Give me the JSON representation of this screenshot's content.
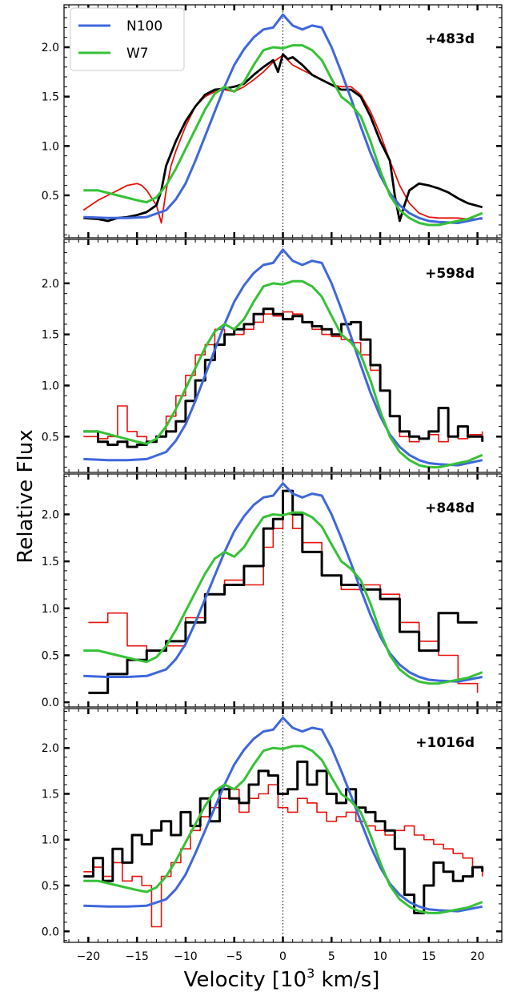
{
  "chart_data": {
    "type": "line",
    "xlabel": "Velocity [10",
    "xlabel_sup": "3",
    "xlabel_tail": " km/s]",
    "ylabel": "Relative Flux",
    "xlim": [
      -22.5,
      22.5
    ],
    "x_ticks": [
      -20,
      -15,
      -10,
      -5,
      0,
      5,
      10,
      15,
      20
    ],
    "x_tick_labels": [
      "−20",
      "−15",
      "−10",
      "−5",
      "0",
      "5",
      "10",
      "15",
      "20"
    ],
    "legend": {
      "location": "upper-left",
      "entries": [
        {
          "name": "N100",
          "color": "#3f67dc"
        },
        {
          "name": "W7",
          "color": "#36c236"
        }
      ]
    },
    "observed_colors": {
      "spectrum_a": "#000000",
      "spectrum_b": "#e8120c"
    },
    "model_series": {
      "N100": {
        "color": "#3f67dc",
        "x": [
          -20.5,
          -18,
          -16,
          -14,
          -12,
          -11,
          -10,
          -9,
          -8,
          -7,
          -6,
          -5,
          -4,
          -3,
          -2,
          -1,
          0,
          1,
          2,
          3,
          4,
          5,
          6,
          7,
          8,
          9,
          10,
          11,
          12,
          13,
          14,
          15,
          16,
          18,
          20.5
        ],
        "y": [
          0.28,
          0.27,
          0.27,
          0.28,
          0.35,
          0.46,
          0.62,
          0.85,
          1.1,
          1.35,
          1.6,
          1.82,
          1.98,
          2.1,
          2.18,
          2.2,
          2.33,
          2.22,
          2.18,
          2.22,
          2.2,
          2.0,
          1.75,
          1.48,
          1.2,
          0.93,
          0.7,
          0.52,
          0.4,
          0.32,
          0.27,
          0.24,
          0.23,
          0.22,
          0.27
        ]
      },
      "W7": {
        "color": "#36c236",
        "x": [
          -20.5,
          -19,
          -17,
          -15,
          -14,
          -13,
          -12,
          -11,
          -10,
          -9,
          -8,
          -7,
          -6,
          -5,
          -4,
          -3,
          -2,
          -1,
          0,
          1,
          2,
          3,
          4,
          5,
          6,
          7,
          8,
          9,
          10,
          11,
          12,
          13,
          14,
          15,
          16,
          17,
          18,
          19,
          20.5
        ],
        "y": [
          0.55,
          0.55,
          0.5,
          0.45,
          0.43,
          0.48,
          0.6,
          0.77,
          0.97,
          1.17,
          1.37,
          1.53,
          1.6,
          1.55,
          1.65,
          1.82,
          1.97,
          2.0,
          1.99,
          2.02,
          2.02,
          1.97,
          1.87,
          1.68,
          1.5,
          1.42,
          1.3,
          1.05,
          0.75,
          0.5,
          0.35,
          0.27,
          0.22,
          0.2,
          0.2,
          0.22,
          0.24,
          0.26,
          0.32
        ]
      }
    },
    "panels": [
      {
        "epoch": "+483d",
        "ylim": [
          0.07,
          2.43
        ],
        "y_ticks": [
          0.5,
          1.0,
          1.5,
          2.0
        ],
        "y_tick_labels": [
          "0.5",
          "1.0",
          "1.5",
          "2.0"
        ],
        "step": false,
        "spectrum_a": {
          "x": [
            -20.5,
            -19,
            -18,
            -17,
            -16,
            -15,
            -14,
            -13,
            -12.5,
            -12,
            -11,
            -10,
            -9,
            -8,
            -7,
            -6,
            -5,
            -4,
            -3,
            -2,
            -1,
            -0.5,
            0,
            0.5,
            1,
            2,
            3,
            4,
            5,
            6,
            7,
            8,
            9,
            10,
            11,
            11.5,
            12,
            12.5,
            13,
            14,
            15,
            16,
            17,
            18,
            19,
            20.5
          ],
          "y": [
            0.27,
            0.26,
            0.24,
            0.27,
            0.28,
            0.3,
            0.33,
            0.4,
            0.55,
            0.8,
            1.05,
            1.25,
            1.4,
            1.52,
            1.57,
            1.58,
            1.6,
            1.63,
            1.72,
            1.8,
            1.87,
            1.75,
            1.93,
            1.88,
            1.9,
            1.82,
            1.72,
            1.67,
            1.62,
            1.57,
            1.57,
            1.5,
            1.3,
            1.05,
            0.85,
            0.5,
            0.24,
            0.4,
            0.55,
            0.62,
            0.6,
            0.57,
            0.53,
            0.47,
            0.42,
            0.38
          ]
        },
        "spectrum_b": {
          "x": [
            -20.5,
            -19,
            -18,
            -17,
            -16,
            -15,
            -14.5,
            -14,
            -13,
            -12.5,
            -12,
            -11.5,
            -11,
            -10,
            -9,
            -8,
            -7,
            -6,
            -5,
            -4,
            -3,
            -2,
            -1,
            0,
            1,
            2,
            3,
            4,
            5,
            6,
            7,
            8,
            9,
            10,
            11,
            12,
            13,
            14,
            15,
            16,
            17,
            18,
            19,
            20.5
          ],
          "y": [
            0.35,
            0.45,
            0.5,
            0.55,
            0.6,
            0.62,
            0.6,
            0.55,
            0.4,
            0.22,
            0.55,
            0.8,
            0.95,
            1.2,
            1.4,
            1.5,
            1.55,
            1.57,
            1.55,
            1.6,
            1.67,
            1.75,
            1.85,
            1.92,
            1.82,
            1.77,
            1.72,
            1.67,
            1.62,
            1.6,
            1.6,
            1.52,
            1.35,
            1.12,
            0.85,
            0.6,
            0.42,
            0.32,
            0.28,
            0.27,
            0.27,
            0.27,
            0.26,
            0.26
          ]
        }
      },
      {
        "epoch": "+598d",
        "ylim": [
          0.15,
          2.43
        ],
        "y_ticks": [
          0.5,
          1.0,
          1.5,
          2.0
        ],
        "y_tick_labels": [
          "0.5",
          "1.0",
          "1.5",
          "2.0"
        ],
        "step": true,
        "spectrum_a": {
          "x": [
            -20.5,
            -19,
            -18,
            -17,
            -16,
            -15,
            -14,
            -13,
            -12,
            -11,
            -10,
            -9,
            -8,
            -7,
            -6,
            -5,
            -4,
            -3,
            -2,
            -1,
            0,
            1,
            2,
            3,
            4,
            5,
            6,
            7,
            8,
            9,
            10,
            11,
            12,
            13,
            14,
            15,
            16,
            17,
            18,
            19,
            20.5
          ],
          "y": [
            0.55,
            0.45,
            0.42,
            0.45,
            0.4,
            0.42,
            0.45,
            0.5,
            0.55,
            0.65,
            0.85,
            1.05,
            1.25,
            1.4,
            1.5,
            1.55,
            1.6,
            1.7,
            1.75,
            1.7,
            1.65,
            1.68,
            1.62,
            1.58,
            1.55,
            1.5,
            1.6,
            1.62,
            1.45,
            1.2,
            0.95,
            0.7,
            0.55,
            0.5,
            0.48,
            0.55,
            0.78,
            0.5,
            0.6,
            0.5,
            0.45
          ]
        },
        "spectrum_b": {
          "x": [
            -20.5,
            -19,
            -18,
            -17,
            -16,
            -15,
            -14,
            -13,
            -12,
            -11,
            -10,
            -9,
            -8,
            -7,
            -6,
            -5,
            -4,
            -3,
            -2,
            -1,
            0,
            1,
            2,
            3,
            4,
            5,
            6,
            7,
            8,
            9,
            10,
            11,
            12,
            13,
            14,
            15,
            16,
            17,
            18,
            19,
            20.5
          ],
          "y": [
            0.5,
            0.48,
            0.5,
            0.8,
            0.55,
            0.5,
            0.45,
            0.5,
            0.7,
            0.9,
            1.1,
            1.3,
            1.4,
            1.55,
            1.5,
            1.5,
            1.55,
            1.62,
            1.7,
            1.68,
            1.72,
            1.7,
            1.62,
            1.55,
            1.5,
            1.48,
            1.45,
            1.42,
            1.3,
            1.15,
            0.95,
            0.7,
            0.5,
            0.45,
            0.48,
            0.52,
            0.45,
            0.5,
            0.48,
            0.52,
            0.55
          ]
        }
      },
      {
        "epoch": "+848d",
        "ylim": [
          -0.05,
          2.43
        ],
        "y_ticks": [
          0.0,
          0.5,
          1.0,
          1.5,
          2.0
        ],
        "y_tick_labels": [
          "0.0",
          "0.5",
          "1.0",
          "1.5",
          "2.0"
        ],
        "step": true,
        "spectrum_a": {
          "x": [
            -20,
            -18,
            -16,
            -14,
            -12,
            -10,
            -8,
            -6,
            -4,
            -2,
            -1,
            0,
            1,
            2,
            4,
            6,
            8,
            10,
            12,
            14,
            16,
            18,
            20
          ],
          "y": [
            0.1,
            0.3,
            0.45,
            0.55,
            0.65,
            0.85,
            1.15,
            1.25,
            1.45,
            1.85,
            1.95,
            2.25,
            2.0,
            1.6,
            1.35,
            1.25,
            1.2,
            1.1,
            0.75,
            0.55,
            0.95,
            0.85,
            0.85
          ]
        },
        "spectrum_b": {
          "x": [
            -20,
            -18,
            -16,
            -14,
            -12,
            -10,
            -8,
            -6,
            -4,
            -2,
            -1,
            0,
            1,
            2,
            4,
            6,
            8,
            10,
            12,
            14,
            16,
            18,
            20
          ],
          "y": [
            0.85,
            0.95,
            0.6,
            0.55,
            0.6,
            0.9,
            1.15,
            1.3,
            1.25,
            1.65,
            1.85,
            2.0,
            1.85,
            1.7,
            1.35,
            1.2,
            1.25,
            1.15,
            0.85,
            0.65,
            0.5,
            0.2,
            0.1
          ]
        }
      },
      {
        "epoch": "+1016d",
        "ylim": [
          -0.12,
          2.43
        ],
        "y_ticks": [
          0.0,
          0.5,
          1.0,
          1.5,
          2.0
        ],
        "y_tick_labels": [
          "0.0",
          "0.5",
          "1.0",
          "1.5",
          "2.0"
        ],
        "step": true,
        "spectrum_a": {
          "x": [
            -20.5,
            -19.5,
            -18.5,
            -17.5,
            -16.5,
            -15.5,
            -14.5,
            -13.5,
            -12.5,
            -11.5,
            -10.5,
            -9.5,
            -8.5,
            -7.5,
            -6.5,
            -5.5,
            -4.5,
            -3.5,
            -2.5,
            -1.5,
            -0.5,
            0.5,
            1.5,
            2.5,
            3.5,
            4.5,
            5.5,
            6.5,
            7.5,
            8.5,
            9.5,
            10.5,
            11.5,
            12.5,
            13.5,
            14.5,
            15.5,
            16.5,
            17.5,
            18.5,
            19.5,
            20.5
          ],
          "y": [
            0.6,
            0.8,
            0.55,
            0.9,
            0.75,
            1.05,
            0.95,
            1.1,
            1.2,
            1.05,
            1.3,
            1.15,
            1.45,
            1.2,
            1.55,
            1.45,
            1.4,
            1.6,
            1.75,
            1.7,
            1.5,
            1.55,
            1.85,
            1.6,
            1.75,
            1.5,
            1.4,
            1.55,
            1.35,
            1.3,
            1.2,
            1.1,
            0.9,
            0.4,
            0.2,
            0.5,
            0.75,
            0.65,
            0.55,
            0.6,
            0.7,
            0.65
          ]
        },
        "spectrum_b": {
          "x": [
            -20.5,
            -19.5,
            -18.5,
            -17.5,
            -16.5,
            -15.5,
            -14.5,
            -13.5,
            -12.5,
            -11.5,
            -10.5,
            -9.5,
            -8.5,
            -7.5,
            -6.5,
            -5.5,
            -4.5,
            -3.5,
            -2.5,
            -1.5,
            -0.5,
            0.5,
            1.5,
            2.5,
            3.5,
            4.5,
            5.5,
            6.5,
            7.5,
            8.5,
            9.5,
            10.5,
            11.5,
            12.5,
            13.5,
            14.5,
            15.5,
            16.5,
            17.5,
            18.5,
            19.5,
            20.5
          ],
          "y": [
            0.65,
            0.7,
            0.6,
            0.75,
            0.55,
            0.6,
            0.5,
            0.05,
            0.6,
            0.75,
            0.9,
            1.1,
            1.25,
            1.35,
            1.45,
            1.55,
            1.3,
            1.45,
            1.5,
            1.6,
            1.35,
            1.3,
            1.45,
            1.4,
            1.3,
            1.2,
            1.25,
            1.3,
            1.2,
            1.15,
            1.1,
            1.05,
            1.1,
            1.15,
            1.05,
            1.0,
            0.95,
            0.9,
            0.85,
            0.8,
            0.7,
            0.6
          ]
        }
      }
    ]
  }
}
